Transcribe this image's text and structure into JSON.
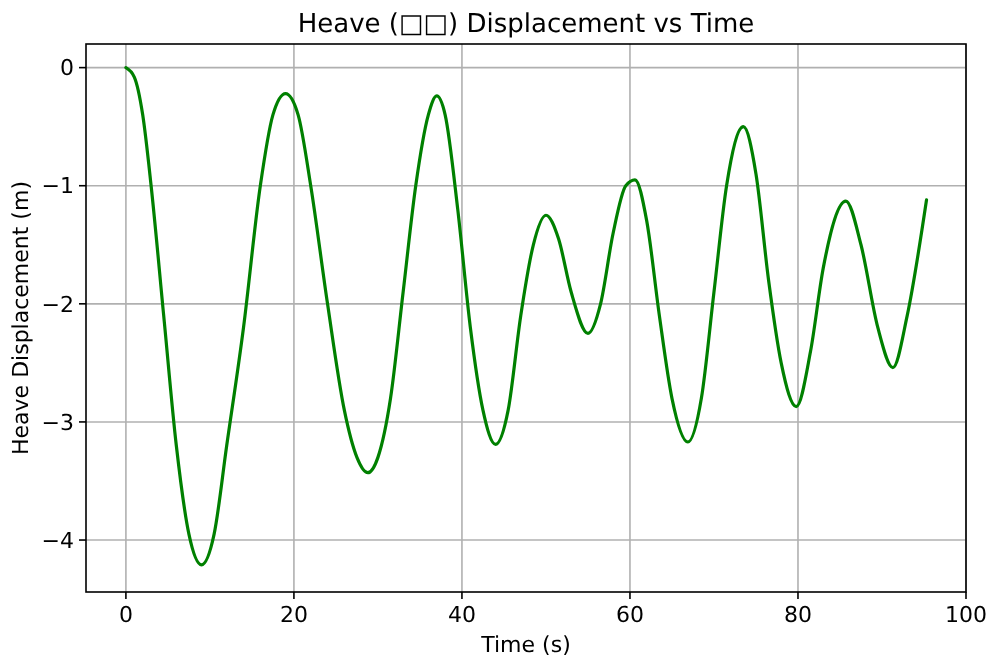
{
  "chart_data": {
    "type": "line",
    "title": "Heave (□□) Displacement vs Time",
    "xlabel": "Time (s)",
    "ylabel": "Heave Displacement (m)",
    "xlim": [
      -4.75,
      100
    ],
    "xticks": [
      0,
      20,
      40,
      60,
      80,
      100
    ],
    "ylim": [
      -4.44,
      0.2
    ],
    "yticks": [
      -4,
      -3,
      -2,
      -1,
      0
    ],
    "grid": true,
    "series": [
      {
        "color": "#008000",
        "x": [
          0,
          1,
          2,
          3,
          4.5,
          6,
          7.5,
          9,
          10.5,
          12,
          14,
          16,
          17.5,
          19,
          20.5,
          22,
          24,
          26,
          27.5,
          28.8,
          30,
          31.5,
          33,
          34.5,
          36,
          37,
          38,
          39.5,
          41,
          42.5,
          44,
          45.5,
          47,
          48.5,
          50,
          51.5,
          53,
          55,
          56.5,
          58,
          59.5,
          60.6,
          62,
          63.5,
          65,
          66.9,
          68.5,
          70,
          71.5,
          73.5,
          75,
          76.5,
          78,
          79.8,
          81.5,
          83,
          85.7,
          87.5,
          89.5,
          91.3,
          93,
          95.3
        ],
        "values": [
          0,
          -0.08,
          -0.4,
          -1.0,
          -2.1,
          -3.2,
          -3.95,
          -4.21,
          -3.95,
          -3.2,
          -2.2,
          -1.0,
          -0.4,
          -0.22,
          -0.4,
          -1.0,
          -2.0,
          -2.9,
          -3.3,
          -3.43,
          -3.3,
          -2.8,
          -1.9,
          -1.0,
          -0.4,
          -0.24,
          -0.4,
          -1.2,
          -2.2,
          -2.9,
          -3.19,
          -2.9,
          -2.1,
          -1.5,
          -1.25,
          -1.45,
          -1.9,
          -2.25,
          -2.0,
          -1.4,
          -1.0,
          -0.95,
          -1.3,
          -2.1,
          -2.8,
          -3.17,
          -2.8,
          -1.9,
          -1.0,
          -0.5,
          -0.9,
          -1.8,
          -2.5,
          -2.87,
          -2.4,
          -1.7,
          -1.13,
          -1.5,
          -2.2,
          -2.54,
          -2.1,
          -1.12
        ]
      }
    ]
  }
}
